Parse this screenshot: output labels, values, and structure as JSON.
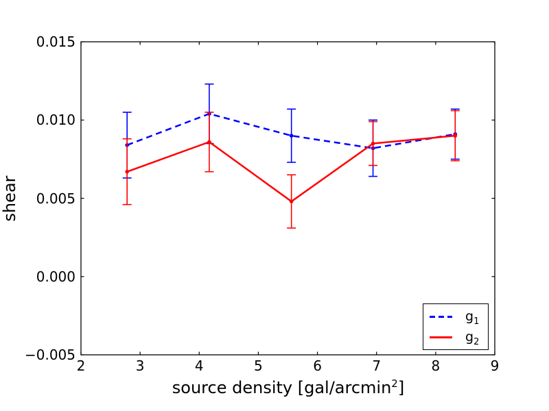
{
  "figure": {
    "background": "#ffffff",
    "frame_color": "#000000"
  },
  "chart_data": {
    "type": "line",
    "title": "",
    "xlabel_text": "source density [gal/arcmin²]",
    "xlabel_parts": {
      "main": "source density [gal/arcmin",
      "sup": "2",
      "end": "]"
    },
    "ylabel": "shear",
    "xlim": [
      2,
      9
    ],
    "ylim": [
      -0.005,
      0.015
    ],
    "xticks": [
      2,
      3,
      4,
      5,
      6,
      7,
      8,
      9
    ],
    "xtick_labels": [
      "2",
      "3",
      "4",
      "5",
      "6",
      "7",
      "8",
      "9"
    ],
    "yticks": [
      -0.005,
      0.0,
      0.005,
      0.01,
      0.015
    ],
    "ytick_labels": [
      "−0.005",
      "0.000",
      "0.005",
      "0.010",
      "0.015"
    ],
    "grid": false,
    "legend_position": "lower right",
    "x": [
      2.78,
      4.17,
      5.56,
      6.94,
      8.33
    ],
    "series": [
      {
        "name": "g1",
        "label_main": "g",
        "label_sub": "1",
        "color": "#0000ff",
        "line_style": "dashed",
        "marker": "point",
        "y": [
          0.0084,
          0.0104,
          0.009,
          0.0082,
          0.0091
        ],
        "yerr": [
          0.0021,
          0.0019,
          0.0017,
          0.0018,
          0.0016
        ]
      },
      {
        "name": "g2",
        "label_main": "g",
        "label_sub": "2",
        "color": "#ff0000",
        "line_style": "solid",
        "marker": "point",
        "y": [
          0.0067,
          0.0086,
          0.0048,
          0.0085,
          0.009
        ],
        "yerr": [
          0.0021,
          0.0019,
          0.0017,
          0.0014,
          0.0016
        ]
      }
    ]
  }
}
